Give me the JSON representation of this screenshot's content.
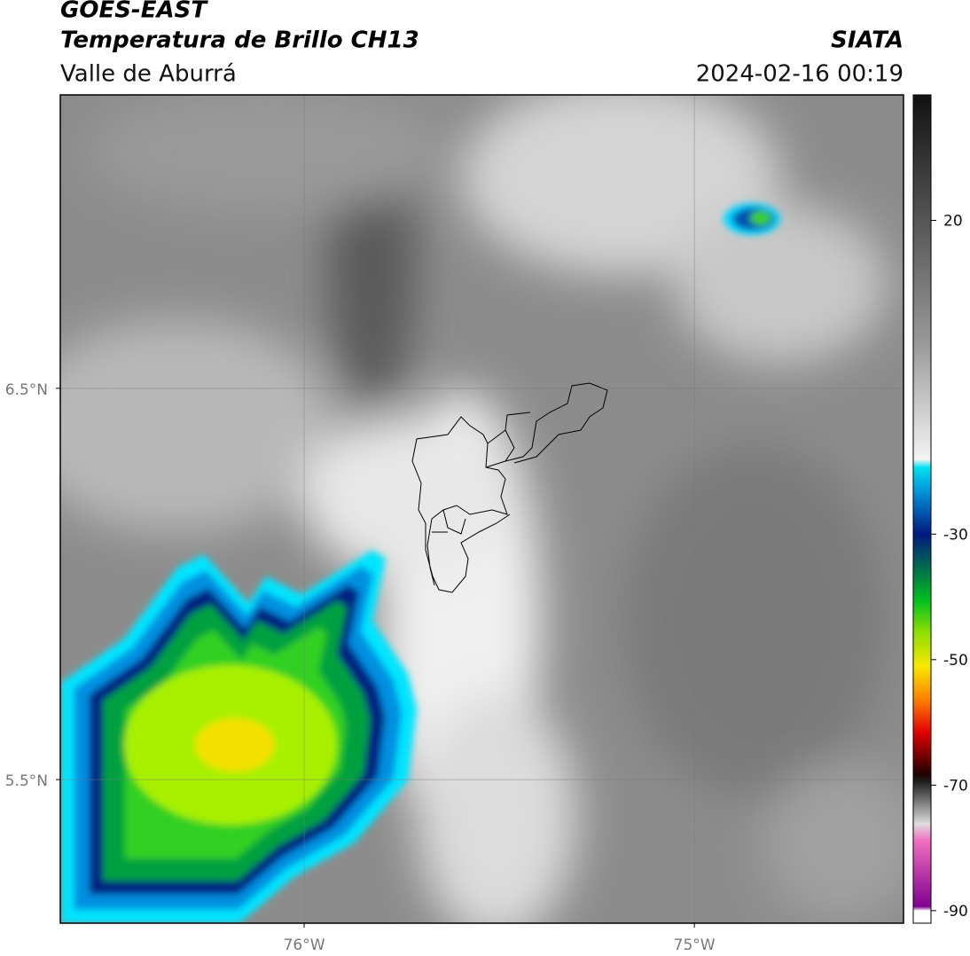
{
  "header": {
    "title": "GOES-EAST",
    "subtitle": "Temperatura de Brillo CH13",
    "region": "Valle de Aburrá",
    "source": "SIATA",
    "datetime": "2024-02-16 00:19"
  },
  "map": {
    "xlim": [
      -76.625,
      -74.464
    ],
    "ylim": [
      5.133,
      7.25
    ],
    "xticks": [
      {
        "value": -76,
        "label": "76°W"
      },
      {
        "value": -75,
        "label": "75°W"
      }
    ],
    "yticks": [
      {
        "value": 6.5,
        "label": "6.5°N"
      },
      {
        "value": 5.5,
        "label": "5.5°N"
      }
    ],
    "grid": true
  },
  "colorbar": {
    "lim": [
      -92,
      40
    ],
    "ticks": [
      20,
      -30,
      -50,
      -70,
      -90
    ]
  }
}
